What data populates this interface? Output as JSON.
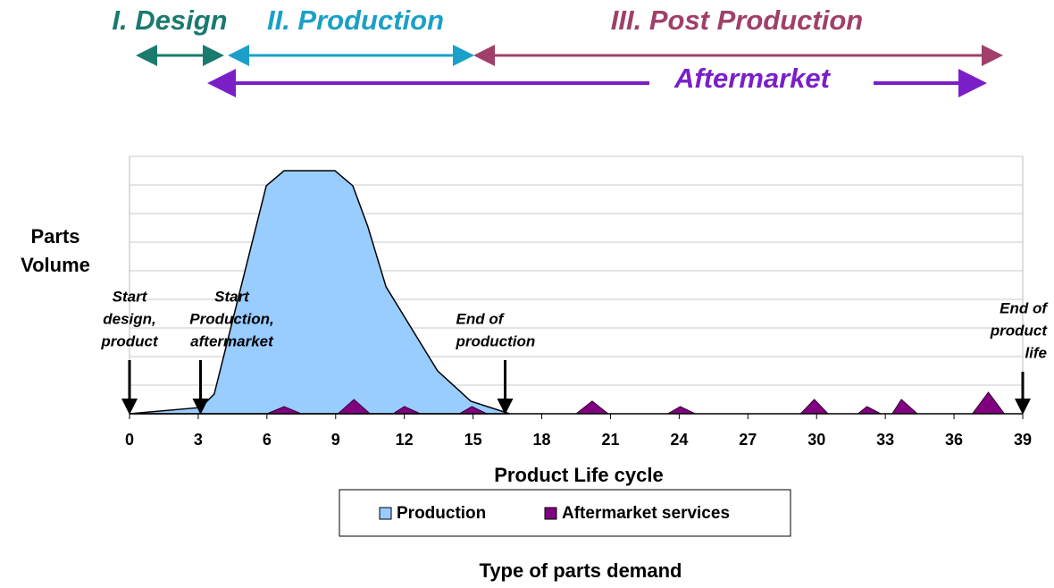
{
  "phases": {
    "design": "I. Design",
    "production": "II. Production",
    "post": "III. Post Production",
    "aftermarket": "Aftermarket"
  },
  "chart_data": {
    "type": "area",
    "y_label": [
      "Parts",
      "Volume"
    ],
    "x_label": "Product Life cycle",
    "subtitle": "Type of parts demand",
    "xlim": [
      0,
      39
    ],
    "xticks": [
      0,
      3,
      6,
      9,
      12,
      15,
      18,
      21,
      24,
      27,
      30,
      33,
      36,
      39
    ],
    "ylim": [
      0,
      9
    ],
    "yticks": [
      0,
      1,
      2,
      3,
      4,
      5,
      6,
      7,
      8,
      9
    ],
    "grid": true,
    "series": [
      {
        "name": "Production",
        "color": "#99ccff",
        "x": [
          0,
          3.12,
          3.7,
          5.97,
          6.75,
          8.97,
          9.75,
          10.4,
          11.2,
          13.45,
          14.9,
          16.6
        ],
        "values": [
          0,
          0.22,
          0.69,
          7.97,
          8.5,
          8.5,
          7.97,
          6.56,
          4.44,
          1.5,
          0.44,
          0
        ]
      },
      {
        "name": "Aftermarket services",
        "color": "#800080",
        "x": [
          0,
          6.0,
          6.75,
          7.5,
          9.1,
          9.8,
          10.5,
          11.5,
          12.0,
          12.7,
          14.4,
          14.95,
          15.6,
          19.5,
          20.2,
          20.9,
          23.5,
          24.05,
          24.7,
          29.3,
          29.9,
          30.5,
          31.8,
          32.2,
          32.8,
          33.3,
          33.7,
          34.4,
          36.8,
          37.5,
          38.2,
          39
        ],
        "values": [
          0,
          0,
          0.25,
          0,
          0,
          0.5,
          0,
          0,
          0.25,
          0,
          0,
          0.25,
          0,
          0,
          0.44,
          0,
          0,
          0.25,
          0,
          0,
          0.5,
          0,
          0,
          0.25,
          0,
          0,
          0.5,
          0,
          0,
          0.75,
          0,
          0
        ]
      }
    ],
    "annotations": [
      {
        "x": 0,
        "lines": [
          "Start",
          "design,",
          "product"
        ]
      },
      {
        "x": 3.1,
        "lines": [
          "Start",
          "Production,",
          "aftermarket"
        ]
      },
      {
        "x": 16.4,
        "lines": [
          "End of",
          "production"
        ]
      },
      {
        "x": 39,
        "lines": [
          "End of",
          "product",
          "life"
        ]
      }
    ]
  }
}
